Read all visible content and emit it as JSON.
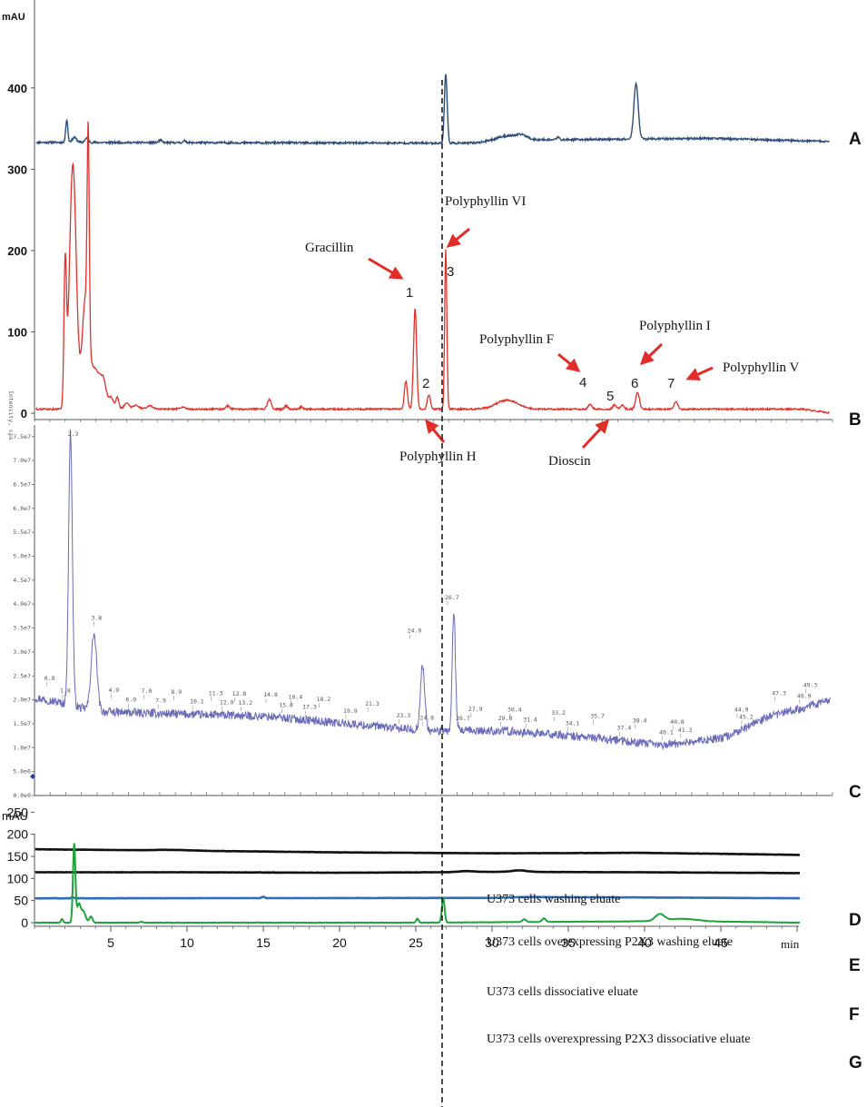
{
  "panel_letters": [
    "A",
    "B",
    "C",
    "D",
    "E",
    "F",
    "G"
  ],
  "chart_data": [
    {
      "type": "line",
      "panel": "A/B",
      "ylabel": "mAU",
      "yticks": [
        0,
        100,
        200,
        300,
        400
      ],
      "ylim": [
        0,
        470
      ],
      "xlim": [
        0,
        52
      ],
      "series": [
        {
          "panel_letter": "A",
          "color": "#2b4f7a",
          "baseline": 333,
          "noise": 1.2,
          "drift": [
            [
              0,
              333
            ],
            [
              30,
              332
            ],
            [
              33,
              336
            ],
            [
              44,
              338
            ],
            [
              52,
              334
            ]
          ],
          "peaks": [
            [
              2.1,
              28,
              0.07
            ],
            [
              2.6,
              6,
              0.15
            ],
            [
              3.4,
              5,
              0.12
            ],
            [
              8.2,
              3,
              0.1
            ],
            [
              9.8,
              2,
              0.1
            ],
            [
              26.8,
              85,
              0.09
            ],
            [
              30.8,
              8,
              0.9
            ],
            [
              31.8,
              4,
              0.3
            ],
            [
              34.1,
              3,
              0.1
            ],
            [
              39.2,
              68,
              0.14
            ]
          ]
        },
        {
          "panel_letter": "B",
          "color": "#e0302a",
          "baseline": 5,
          "noise": 1.0,
          "drift": [
            [
              0,
              5
            ],
            [
              50,
              5
            ],
            [
              52,
              0
            ]
          ],
          "peaks": [
            [
              2.0,
              170,
              0.08
            ],
            [
              2.5,
              300,
              0.22
            ],
            [
              3.3,
              110,
              0.2
            ],
            [
              3.5,
              250,
              0.07
            ],
            [
              3.9,
              50,
              0.5
            ],
            [
              4.5,
              15,
              0.15
            ],
            [
              5.0,
              10,
              0.15
            ],
            [
              5.4,
              14,
              0.1
            ],
            [
              6.0,
              8,
              0.15
            ],
            [
              6.6,
              5,
              0.2
            ],
            [
              7.5,
              4,
              0.2
            ],
            [
              9.7,
              3,
              0.15
            ],
            [
              12.6,
              4,
              0.12
            ],
            [
              15.3,
              12,
              0.12
            ],
            [
              16.4,
              4,
              0.1
            ],
            [
              17.4,
              3,
              0.1
            ],
            [
              24.2,
              34,
              0.1
            ],
            [
              24.8,
              123,
              0.1
            ],
            [
              25.7,
              18,
              0.1
            ],
            [
              26.8,
              197,
              0.07
            ],
            [
              30.8,
              11,
              0.7
            ],
            [
              36.2,
              6,
              0.12
            ],
            [
              37.8,
              5,
              0.12
            ],
            [
              38.3,
              5,
              0.12
            ],
            [
              39.3,
              21,
              0.12
            ],
            [
              41.8,
              9,
              0.12
            ]
          ]
        }
      ],
      "annotations": [
        {
          "text": "Polyphyllin VI",
          "number": "3"
        },
        {
          "text": "Gracillin",
          "number": "1"
        },
        {
          "text": "Polyphyllin H",
          "number": "2"
        },
        {
          "text": "Polyphyllin F",
          "number": "4"
        },
        {
          "text": "Dioscin",
          "number": "5"
        },
        {
          "text": "Polyphyllin I",
          "number": "6"
        },
        {
          "text": "Polyphyllin V",
          "number": "7"
        }
      ]
    },
    {
      "type": "line",
      "panel": "C",
      "panel_letter": "C",
      "ylabel": "Intensity, cps",
      "yticks": [
        "0.0e0",
        "5.0e6",
        "1.0e7",
        "1.5e7",
        "2.0e7",
        "2.5e7",
        "3.0e7",
        "3.5e7",
        "4.0e7",
        "4.5e7",
        "5.0e7",
        "5.5e7",
        "6.0e7",
        "6.5e7",
        "7.0e7",
        "7.5e7"
      ],
      "ylim": [
        0,
        77000000
      ],
      "xlim": [
        0,
        51
      ],
      "series": [
        {
          "color": "#6a6ab8",
          "drift": [
            [
              0,
              20500000
            ],
            [
              1.5,
              19500000
            ],
            [
              4,
              17500000
            ],
            [
              15,
              16500000
            ],
            [
              25,
              13500000
            ],
            [
              30,
              13500000
            ],
            [
              36,
              12000000
            ],
            [
              40,
              10500000
            ],
            [
              44,
              12000000
            ],
            [
              47,
              16500000
            ],
            [
              51,
              20000000
            ]
          ],
          "noise": 900000,
          "peaks": [
            [
              2.3,
              57000000,
              0.12
            ],
            [
              3.8,
              16000000,
              0.18
            ],
            [
              24.8,
              13500000,
              0.14
            ],
            [
              26.8,
              25000000,
              0.1
            ]
          ]
        }
      ],
      "peak_labels": [
        "0.8",
        "1.8",
        "2.3",
        "3.8",
        "4.9",
        "6.0",
        "7.0",
        "7.9",
        "8.9",
        "10.1",
        "11.3",
        "12.0",
        "12.8",
        "13.2",
        "14.8",
        "15.8",
        "16.4",
        "17.3",
        "18.2",
        "19.9",
        "21.3",
        "23.3",
        "24.0",
        "24.8",
        "26.7",
        "26.7",
        "27.9",
        "29.8",
        "30.4",
        "31.4",
        "33.2",
        "34.1",
        "35.7",
        "37.4",
        "38.4",
        "40.1",
        "40.8",
        "41.3",
        "44.9",
        "45.2",
        "47.3",
        "48.9",
        "49.3"
      ]
    },
    {
      "type": "line",
      "panel": "D-G",
      "ylabel": "mAU",
      "xlabel": "min",
      "xticks": [
        5,
        10,
        15,
        20,
        25,
        30,
        35,
        40,
        45
      ],
      "yticks": [
        0,
        50,
        100,
        150,
        200,
        250
      ],
      "ylim": [
        -10,
        250
      ],
      "xlim": [
        0,
        52
      ],
      "series": [
        {
          "panel_letter": "D",
          "name": "U373 cells washing eluate",
          "color": "#111111",
          "noise": 0.5,
          "drift": [
            [
              0,
              166
            ],
            [
              10,
              163
            ],
            [
              20,
              159
            ],
            [
              30,
              157
            ],
            [
              40,
              158
            ],
            [
              51,
              153
            ]
          ],
          "peaks": [
            [
              9,
              1.5,
              1.0
            ]
          ]
        },
        {
          "panel_letter": "E",
          "name": "U373 cells overexpressing P2X3 washing eluate",
          "color": "#111111",
          "noise": 0.5,
          "drift": [
            [
              0,
              114
            ],
            [
              10,
              114
            ],
            [
              20,
              113
            ],
            [
              26,
              114
            ],
            [
              30,
              115
            ],
            [
              40,
              114
            ],
            [
              51,
              112
            ]
          ],
          "peaks": [
            [
              28.3,
              2,
              0.5
            ],
            [
              31.8,
              3.5,
              0.5
            ]
          ]
        },
        {
          "panel_letter": "F",
          "name": "U373 cells dissociative eluate",
          "color": "#2f6db5",
          "noise": 0.4,
          "drift": [
            [
              0,
              55
            ],
            [
              30,
              56
            ],
            [
              32,
              58
            ],
            [
              40,
              57
            ],
            [
              51,
              55
            ]
          ],
          "peaks": [
            [
              2.5,
              2,
              0.1
            ],
            [
              15,
              3,
              0.1
            ]
          ]
        },
        {
          "panel_letter": "G",
          "name": "U373 cells overexpressing P2X3 dissociative eluate",
          "color": "#1ea33a",
          "noise": 0.6,
          "drift": [
            [
              0,
              0
            ],
            [
              25,
              0
            ],
            [
              35,
              2
            ],
            [
              40,
              3
            ],
            [
              46,
              2
            ],
            [
              50,
              0
            ]
          ],
          "peaks": [
            [
              1.8,
              8,
              0.07
            ],
            [
              2.6,
              178,
              0.08
            ],
            [
              2.9,
              40,
              0.12
            ],
            [
              3.2,
              25,
              0.15
            ],
            [
              3.7,
              14,
              0.1
            ],
            [
              7.0,
              2,
              0.1
            ],
            [
              25.1,
              9,
              0.08
            ],
            [
              26.8,
              55,
              0.09
            ],
            [
              32.1,
              6,
              0.12
            ],
            [
              33.4,
              8,
              0.12
            ],
            [
              41.0,
              15,
              0.3
            ],
            [
              42.5,
              6,
              1.0
            ]
          ]
        }
      ]
    }
  ]
}
